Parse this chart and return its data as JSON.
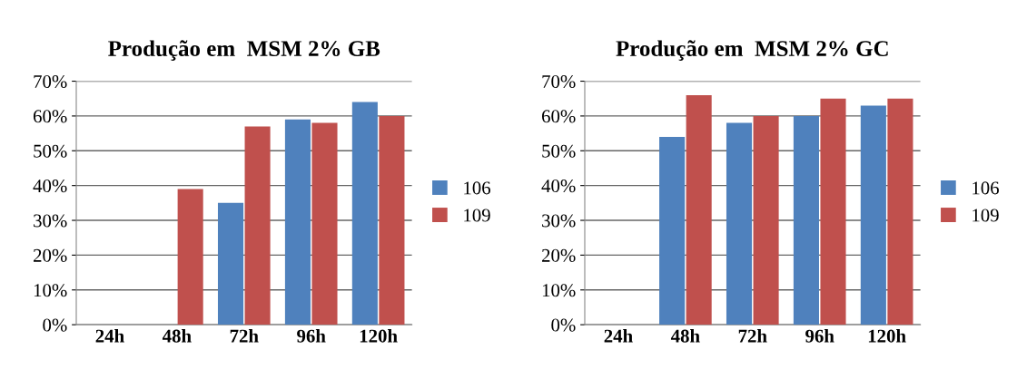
{
  "chart_data": [
    {
      "type": "bar",
      "title": "Produção em  MSM 2% GB",
      "categories": [
        "24h",
        "48h",
        "72h",
        "96h",
        "120h"
      ],
      "series": [
        {
          "name": "106",
          "color": "#4f81bd",
          "values": [
            0,
            0,
            35,
            59,
            64
          ]
        },
        {
          "name": "109",
          "color": "#c0504d",
          "values": [
            0,
            39,
            57,
            58,
            60
          ]
        }
      ],
      "ylim": [
        0,
        70
      ],
      "yticks": [
        {
          "value": 0,
          "label": "0%"
        },
        {
          "value": 10,
          "label": "10%"
        },
        {
          "value": 20,
          "label": "20%"
        },
        {
          "value": 30,
          "label": "30%"
        },
        {
          "value": 40,
          "label": "40%"
        },
        {
          "value": 50,
          "label": "50%"
        },
        {
          "value": 60,
          "label": "60%"
        },
        {
          "value": 70,
          "label": "70%"
        }
      ],
      "grid": "y",
      "legend": "right"
    },
    {
      "type": "bar",
      "title": "Produção em  MSM 2% GC",
      "categories": [
        "24h",
        "48h",
        "72h",
        "96h",
        "120h"
      ],
      "series": [
        {
          "name": "106",
          "color": "#4f81bd",
          "values": [
            0,
            54,
            58,
            60,
            63
          ]
        },
        {
          "name": "109",
          "color": "#c0504d",
          "values": [
            0,
            66,
            60,
            65,
            65
          ]
        }
      ],
      "ylim": [
        0,
        70
      ],
      "yticks": [
        {
          "value": 0,
          "label": "0%"
        },
        {
          "value": 10,
          "label": "10%"
        },
        {
          "value": 20,
          "label": "20%"
        },
        {
          "value": 30,
          "label": "30%"
        },
        {
          "value": 40,
          "label": "40%"
        },
        {
          "value": 50,
          "label": "50%"
        },
        {
          "value": 60,
          "label": "60%"
        },
        {
          "value": 70,
          "label": "70%"
        }
      ],
      "grid": "y",
      "legend": "right"
    }
  ]
}
